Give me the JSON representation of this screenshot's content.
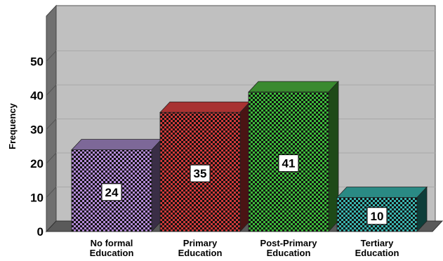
{
  "chart_data": {
    "type": "bar",
    "categories": [
      "No formal Education",
      "Primary Education",
      "Post-Primary Education",
      "Tertiary Education"
    ],
    "category_lines": [
      [
        "No formal",
        "Education"
      ],
      [
        "Primary",
        "Education"
      ],
      [
        "Post-Primary",
        "Education"
      ],
      [
        "Tertiary",
        "Education"
      ]
    ],
    "values": [
      24,
      35,
      41,
      10
    ],
    "data_labels": [
      "24",
      "35",
      "41",
      "10"
    ],
    "ylabel": "Frequency",
    "ylim": [
      0,
      55
    ],
    "yticks": [
      0,
      10,
      20,
      30,
      40,
      50
    ],
    "grid": true,
    "legend": "none",
    "style": "3d-checkered",
    "colors": {
      "bars": [
        "#b48ad8",
        "#d03a3a",
        "#3dbb3a",
        "#3ab6b0"
      ],
      "bar_tops": [
        "#7d6898",
        "#a83232",
        "#3a8a30",
        "#2a8a84"
      ],
      "bar_sides": [
        "#3a2e46",
        "#4a1414",
        "#1e4a18",
        "#0e3e3a"
      ],
      "wall": "#c0c0c0",
      "wall_left": "#707070",
      "floor": "#5a5a5a",
      "grid": "#a8a8a8"
    }
  }
}
